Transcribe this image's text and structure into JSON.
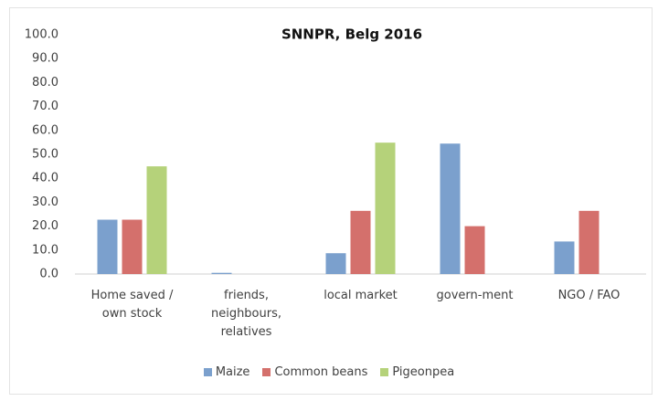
{
  "chart_data": {
    "type": "bar",
    "title": "SNNPR, Belg 2016",
    "categories": [
      "Home saved / own stock",
      "friends, neighbours, relatives",
      "local market",
      "govern-ment",
      "NGO / FAO"
    ],
    "series": [
      {
        "name": "Maize",
        "color": "#7ba0cd",
        "values": [
          22.7,
          0.5,
          8.7,
          54.5,
          13.6
        ]
      },
      {
        "name": "Common beans",
        "color": "#d4706c",
        "values": [
          22.7,
          0,
          26.4,
          20.0,
          26.4
        ]
      },
      {
        "name": "Pigeonpea",
        "color": "#b5d27a",
        "values": [
          45.0,
          0,
          54.9,
          0,
          0
        ]
      }
    ],
    "ylim": [
      0,
      100
    ],
    "yticks": [
      {
        "value": 0,
        "label": "0.0"
      },
      {
        "value": 10,
        "label": "10.0"
      },
      {
        "value": 20,
        "label": "20.0"
      },
      {
        "value": 30,
        "label": "30.0"
      },
      {
        "value": 40,
        "label": "40.0"
      },
      {
        "value": 50,
        "label": "50.0"
      },
      {
        "value": 60,
        "label": "60.0"
      },
      {
        "value": 70,
        "label": "70.0"
      },
      {
        "value": 80,
        "label": "80.0"
      },
      {
        "value": 90,
        "label": "90.0"
      },
      {
        "value": 100,
        "label": "100.0"
      }
    ],
    "grid": false,
    "legend": "bottom"
  }
}
